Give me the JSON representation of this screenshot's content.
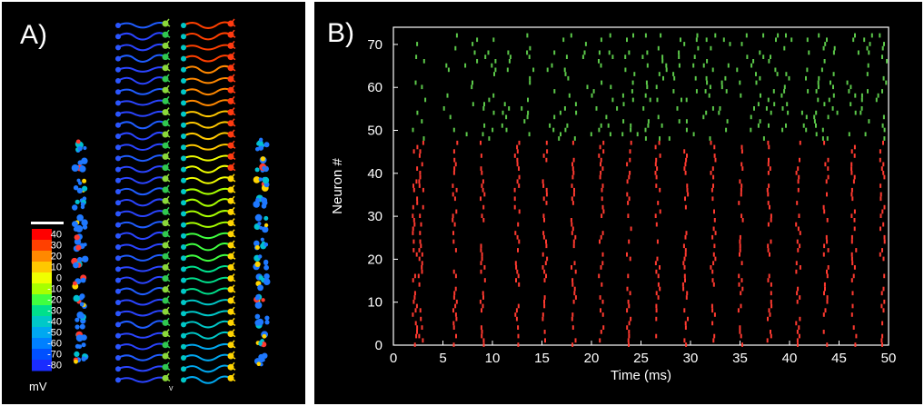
{
  "panels": {
    "a": {
      "label": "A)"
    },
    "b": {
      "label": "B)"
    }
  },
  "colorbar": {
    "ticks": [
      "40",
      "30",
      "20",
      "10",
      "0",
      "-10",
      "-20",
      "-30",
      "-40",
      "-50",
      "-60",
      "-70",
      "-80"
    ],
    "colors": [
      "#ff0000",
      "#ff4000",
      "#ff8800",
      "#ffc800",
      "#f0ff00",
      "#a8ff00",
      "#40ff40",
      "#00e08c",
      "#00c8c8",
      "#00a8f0",
      "#0080ff",
      "#0050ff",
      "#1a2cff"
    ],
    "unit": "mV",
    "small_mark": "v"
  },
  "chart_data": {
    "type": "scatter",
    "title": "",
    "xlabel": "Time (ms)",
    "ylabel": "Neuron #",
    "xlim": [
      0,
      50
    ],
    "ylim": [
      0,
      74
    ],
    "xticks": [
      0,
      5,
      10,
      15,
      20,
      25,
      30,
      35,
      40,
      45,
      50
    ],
    "yticks": [
      0,
      10,
      20,
      30,
      40,
      50,
      60,
      70
    ],
    "grid": false,
    "background": "#000000",
    "series": [
      {
        "color": "#ff3a30",
        "neurons": [
          0,
          47
        ],
        "population_spike_times": [
          2.2,
          2.8,
          6.2,
          9.0,
          12.5,
          15.3,
          18.2,
          21.0,
          23.8,
          26.7,
          29.5,
          32.3,
          35.1,
          38.0,
          40.9,
          43.7,
          46.5,
          49.4
        ]
      },
      {
        "color": "#5cc84a",
        "neurons": [
          48,
          72
        ],
        "population_spike_times": [
          2.5,
          5.5,
          7.5,
          9.5,
          11.5,
          13.3,
          15.6,
          17.2,
          18.8,
          20.4,
          22.0,
          23.6,
          25.2,
          26.8,
          28.4,
          30.0,
          31.6,
          33.2,
          34.8,
          36.4,
          38.0,
          39.6,
          41.2,
          42.8,
          44.4,
          46.0,
          47.6,
          49.2
        ]
      }
    ]
  }
}
